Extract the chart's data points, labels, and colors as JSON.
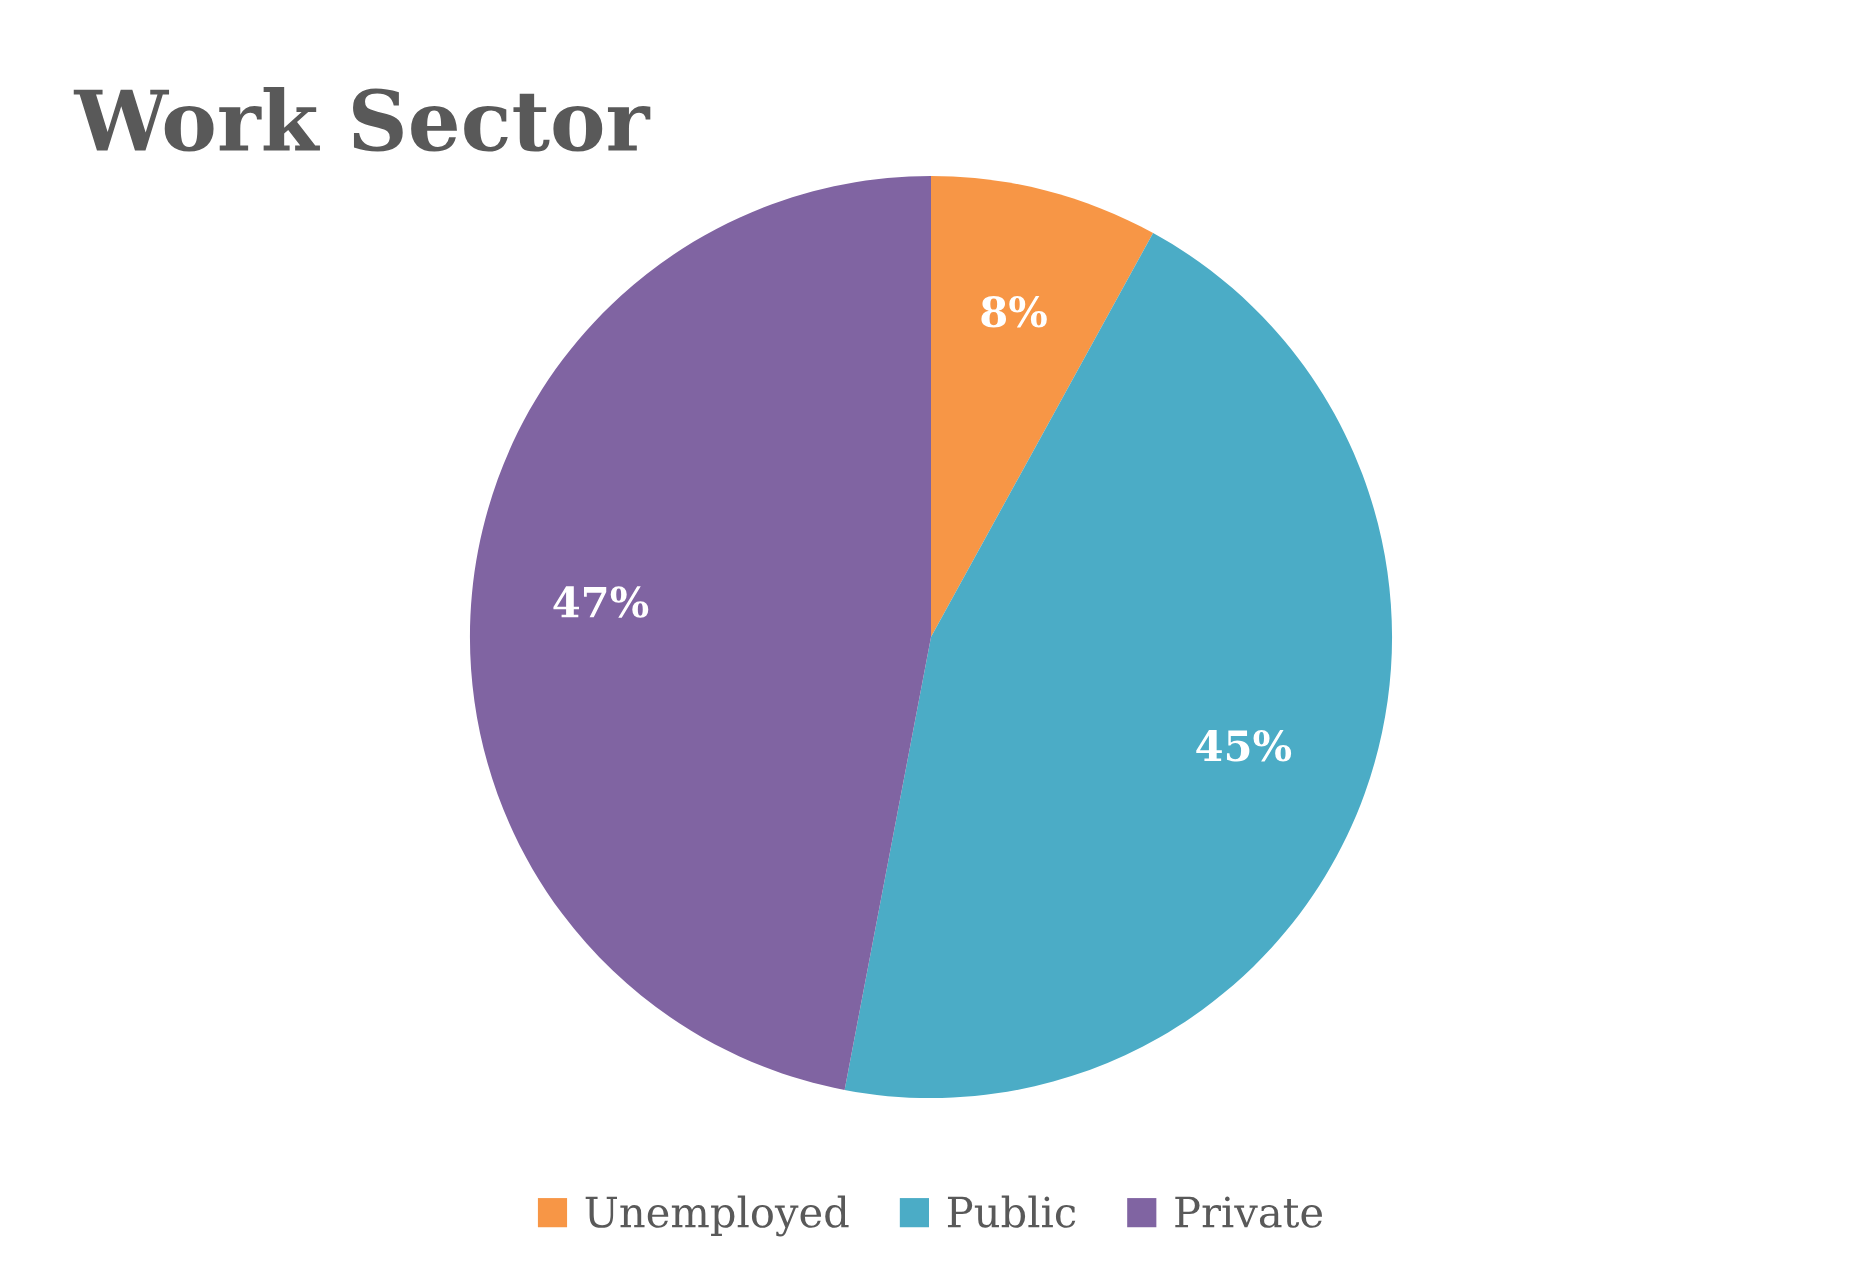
{
  "chart_data": {
    "type": "pie",
    "title": "Work Sector",
    "categories": [
      "Unemployed",
      "Public",
      "Private"
    ],
    "values": [
      8,
      45,
      47
    ],
    "colors": [
      "#f79646",
      "#4bacc6",
      "#8064a2"
    ],
    "value_labels": [
      "8%",
      "45%",
      "47%"
    ],
    "legend": "bottom"
  }
}
